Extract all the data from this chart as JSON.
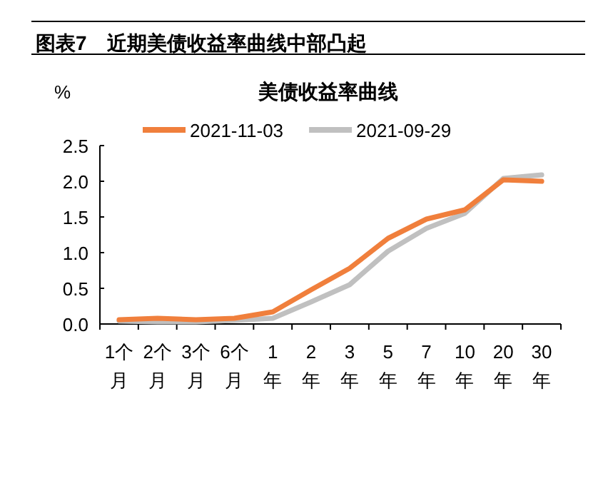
{
  "chart_data": {
    "type": "line",
    "title": "美债收益率曲线",
    "subtitle": "图表7　近期美债收益率曲线中部凸起",
    "ylabel": "%",
    "categories": [
      "1个月",
      "2个月",
      "3个月",
      "6个月",
      "1年",
      "2年",
      "3年",
      "5年",
      "7年",
      "10年",
      "20年",
      "30年"
    ],
    "series": [
      {
        "name": "2021-11-03",
        "color": "#f07f3c",
        "values": [
          0.06,
          0.08,
          0.06,
          0.08,
          0.17,
          0.48,
          0.78,
          1.2,
          1.47,
          1.6,
          2.02,
          2.0
        ]
      },
      {
        "name": "2021-09-29",
        "color": "#c0c0c0",
        "values": [
          0.04,
          0.03,
          0.03,
          0.05,
          0.08,
          0.31,
          0.55,
          1.02,
          1.34,
          1.55,
          2.04,
          2.09
        ]
      }
    ],
    "ylim": [
      0,
      2.5
    ],
    "yticks": [
      {
        "value": 0,
        "label": "0.0"
      },
      {
        "value": 0.5,
        "label": "0.5"
      },
      {
        "value": 1,
        "label": "1.0"
      },
      {
        "value": 1.5,
        "label": "1.5"
      },
      {
        "value": 2,
        "label": "2.0"
      },
      {
        "value": 2.5,
        "label": "2.5"
      }
    ],
    "grid": false,
    "legend": "top",
    "marker": "none",
    "line_style": "solid"
  }
}
